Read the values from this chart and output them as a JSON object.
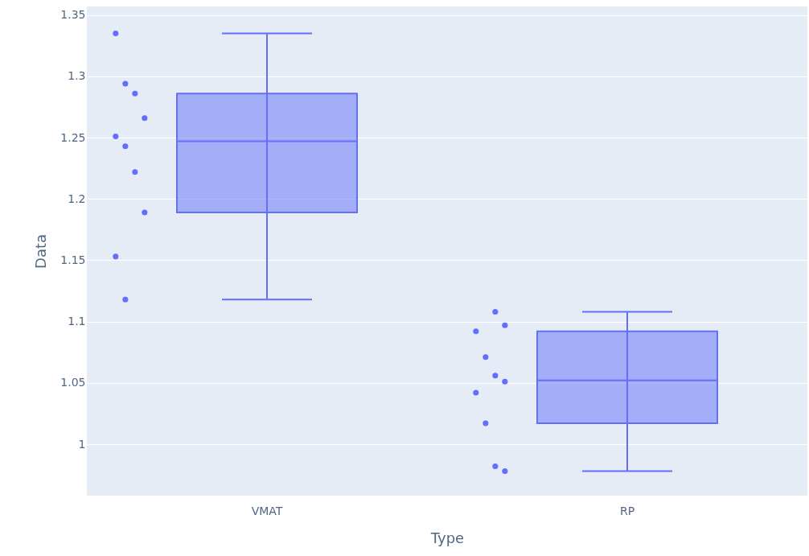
{
  "chart_data": {
    "type": "box",
    "xlabel": "Type",
    "ylabel": "Data",
    "categories": [
      "VMAT",
      "RP"
    ],
    "ylim": [
      0.958,
      1.357
    ],
    "yticks": [
      1,
      1.05,
      1.1,
      1.15,
      1.2,
      1.25,
      1.3,
      1.35
    ],
    "grid": "y",
    "marker": "circle",
    "series": [
      {
        "color": "#636efa",
        "boxes": [
          {
            "low": 1.118,
            "q1": 1.189,
            "median": 1.247,
            "q3": 1.286,
            "high": 1.335
          },
          {
            "low": 0.978,
            "q1": 1.017,
            "median": 1.052,
            "q3": 1.092,
            "high": 1.108
          }
        ]
      },
      {
        "type": "scatter",
        "color": "#636efa",
        "x": [
          "VMAT",
          "VMAT",
          "VMAT",
          "VMAT",
          "VMAT",
          "VMAT",
          "VMAT",
          "VMAT",
          "VMAT",
          "VMAT",
          "RP",
          "RP",
          "RP",
          "RP",
          "RP",
          "RP",
          "RP",
          "RP",
          "RP",
          "RP"
        ],
        "values": [
          1.335,
          1.294,
          1.286,
          1.266,
          1.251,
          1.243,
          1.222,
          1.189,
          1.153,
          1.118,
          1.108,
          1.097,
          1.092,
          1.071,
          1.056,
          1.051,
          1.042,
          1.017,
          0.982,
          0.978
        ]
      }
    ]
  }
}
